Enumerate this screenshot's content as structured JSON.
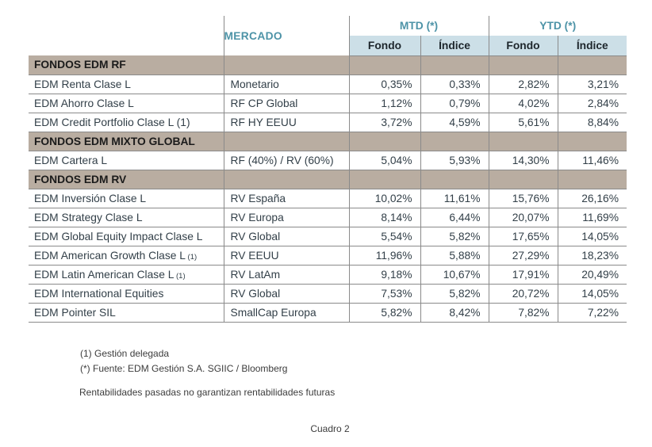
{
  "colors": {
    "teal_header": "#4d93a7",
    "subheader_bg": "#ccdfe7",
    "section_bg": "#b9ada1",
    "grid_line": "#8a8a8a",
    "text": "#323f48"
  },
  "table": {
    "columns": {
      "mercado": "MERCADO",
      "mtd": "MTD (*)",
      "ytd": "YTD (*)",
      "fondo": "Fondo",
      "indice": "Índice"
    },
    "rows": [
      {
        "type": "section",
        "name": "FONDOS EDM RF"
      },
      {
        "type": "fund",
        "name": "EDM Renta Clase L",
        "mercado": "Monetario",
        "mtd_fondo": "0,35%",
        "mtd_indice": "0,33%",
        "ytd_fondo": "2,82%",
        "ytd_indice": "3,21%"
      },
      {
        "type": "fund",
        "name": "EDM Ahorro Clase L",
        "mercado": "RF CP Global",
        "mtd_fondo": "1,12%",
        "mtd_indice": "0,79%",
        "ytd_fondo": "4,02%",
        "ytd_indice": "2,84%"
      },
      {
        "type": "fund",
        "name": "EDM Credit Portfolio Clase L (1)",
        "mercado": "RF HY EEUU",
        "mtd_fondo": "3,72%",
        "mtd_indice": "4,59%",
        "ytd_fondo": "5,61%",
        "ytd_indice": "8,84%"
      },
      {
        "type": "section",
        "name": "FONDOS EDM MIXTO GLOBAL"
      },
      {
        "type": "fund",
        "name": "EDM Cartera L",
        "mercado": "RF (40%) / RV (60%)",
        "mtd_fondo": "5,04%",
        "mtd_indice": "5,93%",
        "ytd_fondo": "14,30%",
        "ytd_indice": "11,46%"
      },
      {
        "type": "section",
        "name": "FONDOS EDM RV"
      },
      {
        "type": "fund",
        "name": "EDM Inversión Clase L",
        "mercado": "RV España",
        "mtd_fondo": "10,02%",
        "mtd_indice": "11,61%",
        "ytd_fondo": "15,76%",
        "ytd_indice": "26,16%"
      },
      {
        "type": "fund",
        "name": "EDM Strategy Clase L",
        "mercado": "RV Europa",
        "mtd_fondo": "8,14%",
        "mtd_indice": "6,44%",
        "ytd_fondo": "20,07%",
        "ytd_indice": "11,69%"
      },
      {
        "type": "fund",
        "name": "EDM Global Equity Impact Clase L",
        "mercado": "RV Global",
        "mtd_fondo": "5,54%",
        "mtd_indice": "5,82%",
        "ytd_fondo": "17,65%",
        "ytd_indice": "14,05%"
      },
      {
        "type": "fund",
        "name": "EDM American Growth Clase L",
        "name_note": "(1)",
        "mercado": "RV EEUU",
        "mtd_fondo": "11,96%",
        "mtd_indice": "5,88%",
        "ytd_fondo": "27,29%",
        "ytd_indice": "18,23%"
      },
      {
        "type": "fund",
        "name": "EDM Latin American Clase L",
        "name_note": "(1)",
        "mercado": "RV LatAm",
        "mtd_fondo": "9,18%",
        "mtd_indice": "10,67%",
        "ytd_fondo": "17,91%",
        "ytd_indice": "20,49%"
      },
      {
        "type": "fund",
        "name": "EDM International Equities",
        "mercado": "RV Global",
        "mtd_fondo": "7,53%",
        "mtd_indice": "5,82%",
        "ytd_fondo": "20,72%",
        "ytd_indice": "14,05%"
      },
      {
        "type": "fund",
        "name": "EDM Pointer SIL",
        "mercado": "SmallCap Europa",
        "mtd_fondo": "5,82%",
        "mtd_indice": "8,42%",
        "ytd_fondo": "7,82%",
        "ytd_indice": "7,22%"
      }
    ]
  },
  "footnotes": {
    "note1": "(1) Gestión delegada",
    "note2": "(*) Fuente: EDM Gestión S.A. SGIIC / Bloomberg",
    "disclaimer": "Rentabilidades pasadas no garantizan rentabilidades futuras",
    "caption": "Cuadro 2"
  }
}
